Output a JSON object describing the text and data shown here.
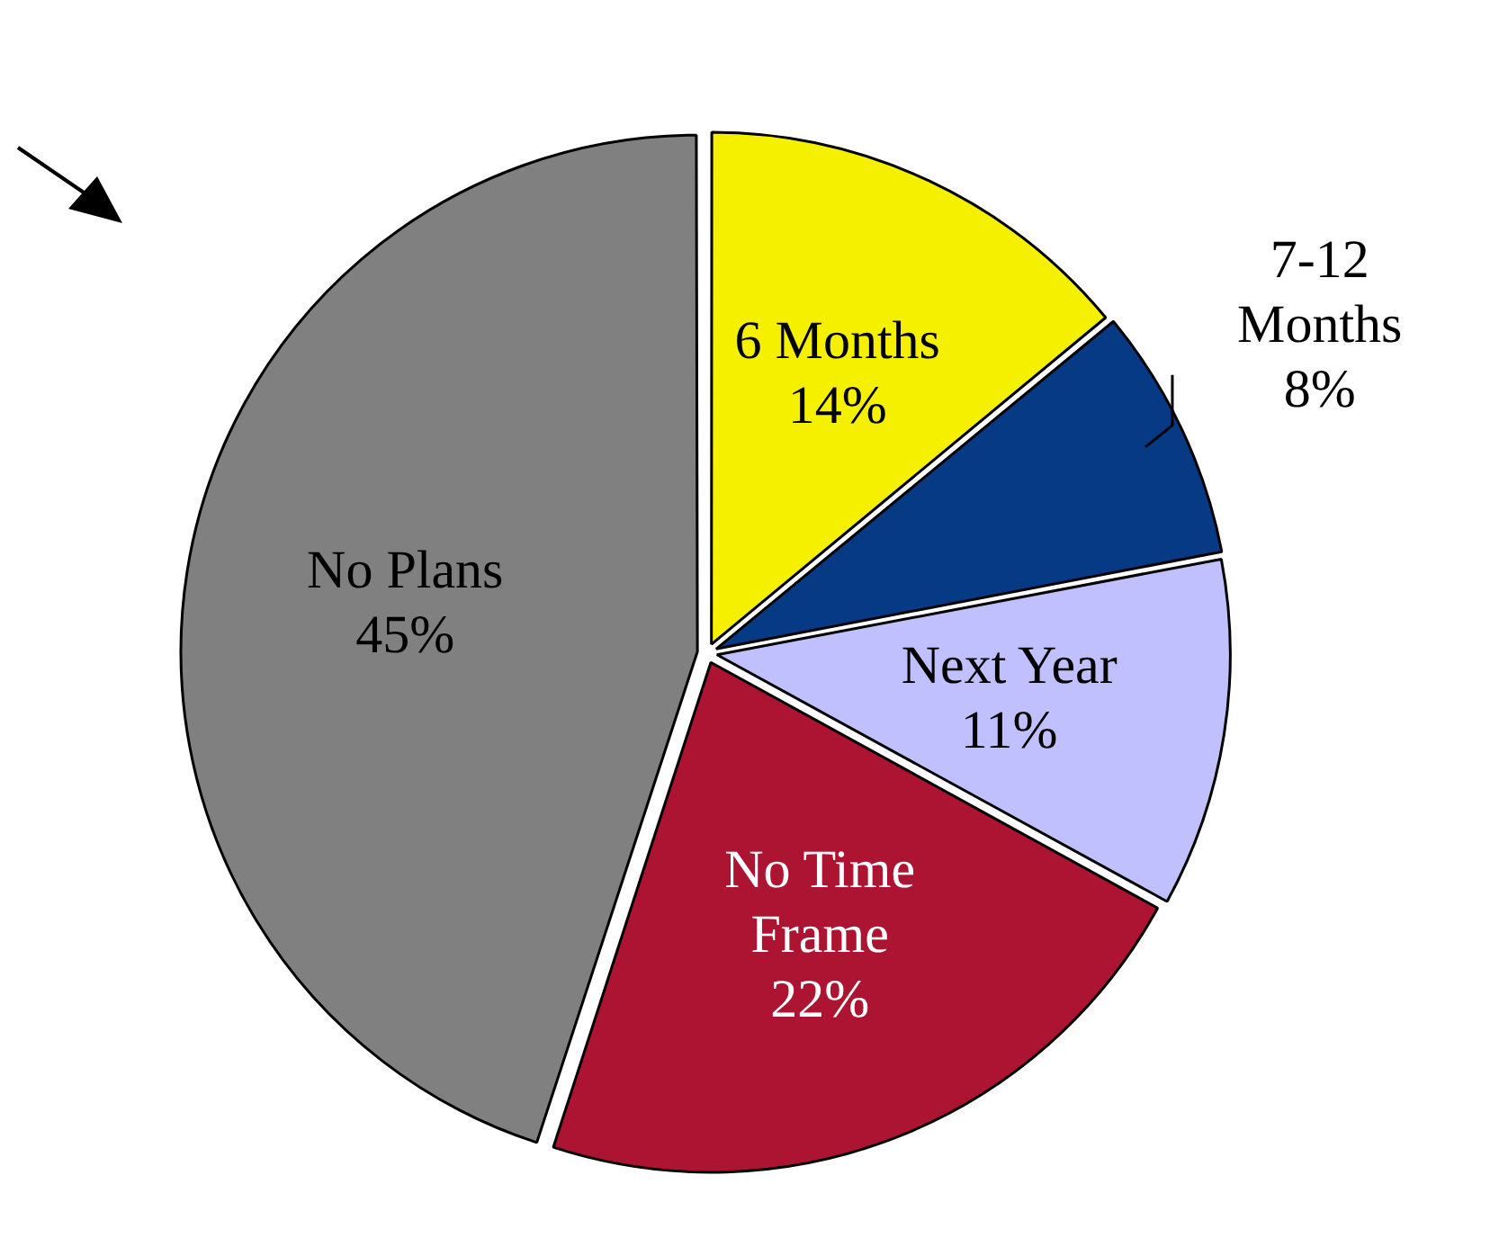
{
  "chart_data": {
    "type": "pie",
    "categories": [
      "6 Months",
      "7-12 Months",
      "Next Year",
      "No Time Frame",
      "No Plans"
    ],
    "values": [
      14,
      8,
      11,
      22,
      45
    ],
    "value_labels": [
      "14%",
      "8%",
      "11%",
      "22%",
      "45%"
    ],
    "colors": [
      "#f5f000",
      "#063a85",
      "#c0c0ff",
      "#ad1432",
      "#808080"
    ],
    "legend": false
  }
}
